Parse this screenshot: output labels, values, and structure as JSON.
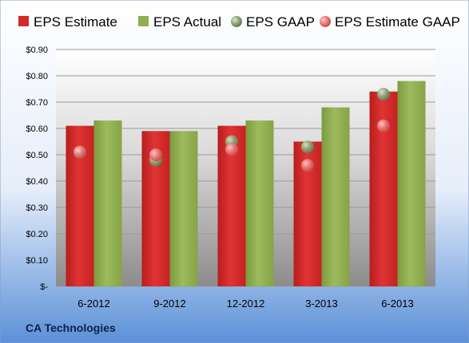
{
  "chart_data": {
    "type": "bar",
    "categories": [
      "6-2012",
      "9-2012",
      "12-2012",
      "3-2013",
      "6-2013"
    ],
    "series": [
      {
        "name": "EPS Estimate",
        "kind": "bar",
        "color": "#d42a2a",
        "values": [
          0.61,
          0.59,
          0.61,
          0.55,
          0.74
        ]
      },
      {
        "name": "EPS Actual",
        "kind": "bar",
        "color": "#8fae4e",
        "values": [
          0.63,
          0.59,
          0.63,
          0.68,
          0.78
        ]
      },
      {
        "name": "EPS GAAP",
        "kind": "marker",
        "color": "#7f9c6a",
        "values": [
          0.51,
          0.48,
          0.55,
          0.53,
          0.73
        ]
      },
      {
        "name": "EPS Estimate GAAP",
        "kind": "marker",
        "color": "#e06b6b",
        "values": [
          0.51,
          0.5,
          0.52,
          0.46,
          0.61
        ]
      }
    ],
    "ylim": [
      0,
      0.9
    ],
    "yticks": [
      0,
      0.1,
      0.2,
      0.3,
      0.4,
      0.5,
      0.6,
      0.7,
      0.8,
      0.9
    ],
    "ytick_labels": [
      "$-",
      "$0.10",
      "$0.20",
      "$0.30",
      "$0.40",
      "$0.50",
      "$0.60",
      "$0.70",
      "$0.80",
      "$0.90"
    ],
    "grid": true,
    "legend_position": "top",
    "title": "",
    "xlabel": "",
    "ylabel": ""
  },
  "footer": {
    "company": "CA Technologies"
  }
}
